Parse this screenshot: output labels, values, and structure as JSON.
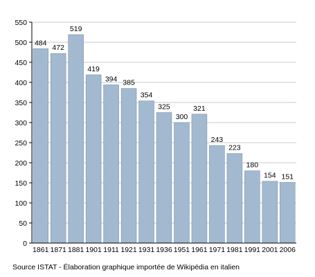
{
  "chart_data": {
    "type": "bar",
    "categories": [
      "1861",
      "1871",
      "1881",
      "1901",
      "1911",
      "1921",
      "1931",
      "1936",
      "1951",
      "1961",
      "1971",
      "1981",
      "1991",
      "2001",
      "2006"
    ],
    "values": [
      484,
      472,
      519,
      419,
      394,
      385,
      354,
      325,
      300,
      321,
      243,
      223,
      180,
      154,
      151
    ],
    "ylim": [
      0,
      550
    ],
    "yticks": [
      0,
      50,
      100,
      150,
      200,
      250,
      300,
      350,
      400,
      450,
      500,
      550
    ],
    "grid": true,
    "bar_color": "#a3b9d0",
    "bar_edge_color": "#7c93ab",
    "grid_color": "#c8c8c8"
  },
  "source_note": "Source ISTAT - Élaboration graphique importée de Wikipédia en italien"
}
